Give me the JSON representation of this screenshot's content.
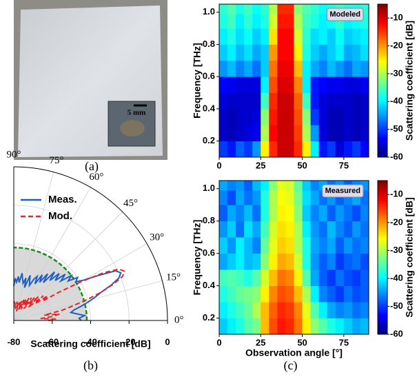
{
  "photo": {
    "scale_label": "5 mm",
    "caption": "(a)"
  },
  "chart_data": [
    {
      "type": "polar",
      "caption": "(b)",
      "xlabel": "Scattering coefficient [dB]",
      "rlim": [
        -80,
        0
      ],
      "rticks": [
        -80,
        -60,
        -40,
        -20,
        0
      ],
      "thetalim": [
        0,
        90
      ],
      "thetaticks": [
        {
          "value": 0,
          "label": "0°"
        },
        {
          "value": 15,
          "label": "15°"
        },
        {
          "value": 30,
          "label": "30°"
        },
        {
          "value": 45,
          "label": "45°"
        },
        {
          "value": 60,
          "label": "60°"
        },
        {
          "value": 75,
          "label": "75°"
        },
        {
          "value": 90,
          "label": "90°"
        }
      ],
      "grid": true,
      "legend": "upper left",
      "noise_floor": -42,
      "noise_color": "#1a8c1a",
      "x": [
        0,
        2,
        4,
        6,
        8,
        10,
        12,
        14,
        16,
        18,
        20,
        22,
        24,
        26,
        28,
        30,
        32,
        34,
        36,
        38,
        40,
        42,
        44,
        46,
        48,
        50,
        52,
        54,
        56,
        58,
        60,
        62,
        64,
        66,
        68,
        70,
        72,
        74,
        76,
        78,
        80,
        82,
        84,
        86,
        88,
        90
      ],
      "series": [
        {
          "name": "Meas.",
          "color": "#1f5fc4",
          "dash": false,
          "values": [
            -45,
            -46,
            -43,
            -47,
            -50,
            -48,
            -44,
            -40,
            -36,
            -32,
            -26,
            -21,
            -19,
            -21,
            -30,
            -38,
            -42,
            -40,
            -45,
            -42,
            -48,
            -44,
            -50,
            -46,
            -52,
            -47,
            -55,
            -50,
            -56,
            -52,
            -58,
            -54,
            -56,
            -60,
            -58,
            -55,
            -62,
            -57,
            -60,
            -58,
            -55,
            -60,
            -57,
            -60,
            -58,
            -62
          ]
        },
        {
          "name": "Mod.",
          "color": "#e8232a",
          "dash": true,
          "values": [
            -62,
            -58,
            -66,
            -60,
            -56,
            -64,
            -54,
            -48,
            -40,
            -32,
            -25,
            -19,
            -17,
            -19,
            -27,
            -40,
            -52,
            -62,
            -58,
            -66,
            -60,
            -70,
            -62,
            -68,
            -64,
            -72,
            -65,
            -70,
            -66,
            -73,
            -67,
            -72,
            -68,
            -74,
            -69,
            -72,
            -70,
            -75,
            -70,
            -73,
            -70,
            -74,
            -71,
            -73,
            -70,
            -72
          ]
        }
      ]
    },
    {
      "type": "heatmap",
      "annotation": "Modeled",
      "ylabel": "Frequency [THz]",
      "colorbar_label": "Scattering coefficient [dB]",
      "colormap": "jet",
      "xlim": [
        0,
        90
      ],
      "xticks": [
        0,
        25,
        50,
        75
      ],
      "ylim": [
        0.1,
        1.05
      ],
      "yticks": [
        0.2,
        0.4,
        0.6,
        0.8,
        {
          "value": 1,
          "label": "1.0"
        }
      ],
      "zlim": [
        -60,
        -5
      ],
      "zticks": [
        -60,
        -50,
        -40,
        -30,
        -20,
        -10
      ],
      "x": [
        2.5,
        7.5,
        12.5,
        17.5,
        22.5,
        27.5,
        32.5,
        37.5,
        42.5,
        47.5,
        52.5,
        57.5,
        62.5,
        67.5,
        72.5,
        77.5,
        82.5,
        87.5
      ],
      "y": [
        0.15,
        0.25,
        0.35,
        0.45,
        0.55,
        0.65,
        0.75,
        0.85,
        0.95,
        1.03
      ],
      "z": [
        [
          -50,
          -52,
          -48,
          -50,
          -45,
          -25,
          -14,
          -9,
          -9,
          -14,
          -25,
          -40,
          -52,
          -50,
          -55,
          -52,
          -50,
          -53
        ],
        [
          -56,
          -57,
          -56,
          -55,
          -54,
          -30,
          -12,
          -9,
          -9,
          -15,
          -30,
          -45,
          -55,
          -57,
          -57,
          -56,
          -57,
          -56
        ],
        [
          -56,
          -57,
          -56,
          -56,
          -55,
          -32,
          -13,
          -9,
          -9,
          -16,
          -32,
          -50,
          -55,
          -57,
          -57,
          -56,
          -57,
          -56
        ],
        [
          -55,
          -56,
          -56,
          -56,
          -56,
          -36,
          -14,
          -9,
          -9,
          -17,
          -36,
          -52,
          -55,
          -56,
          -56,
          -56,
          -57,
          -56
        ],
        [
          -53,
          -54,
          -55,
          -55,
          -55,
          -40,
          -16,
          -10,
          -10,
          -19,
          -40,
          -52,
          -53,
          -54,
          -54,
          -55,
          -55,
          -54
        ],
        [
          -45,
          -43,
          -46,
          -44,
          -47,
          -42,
          -18,
          -11,
          -11,
          -22,
          -40,
          -44,
          -46,
          -43,
          -45,
          -47,
          -44,
          -45
        ],
        [
          -42,
          -40,
          -43,
          -41,
          -44,
          -42,
          -20,
          -12,
          -12,
          -25,
          -38,
          -42,
          -44,
          -42,
          -40,
          -44,
          -43,
          -41
        ],
        [
          -40,
          -38,
          -41,
          -39,
          -42,
          -40,
          -24,
          -12,
          -12,
          -28,
          -37,
          -41,
          -40,
          -42,
          -39,
          -42,
          -41,
          -40
        ],
        [
          -38,
          -36,
          -40,
          -37,
          -40,
          -38,
          -28,
          -13,
          -13,
          -30,
          -36,
          -38,
          -40,
          -39,
          -37,
          -40,
          -39,
          -38
        ],
        [
          -37,
          -35,
          -38,
          -36,
          -39,
          -37,
          -30,
          -14,
          -14,
          -32,
          -35,
          -37,
          -39,
          -38,
          -36,
          -38,
          -38,
          -37
        ]
      ]
    },
    {
      "type": "heatmap",
      "annotation": "Measured",
      "ylabel": "Frequency [THz]",
      "xlabel": "Observation angle [°]",
      "colorbar_label": "Scattering coefficient [dB]",
      "colormap": "jet",
      "caption": "(c)",
      "xlim": [
        0,
        90
      ],
      "xticks": [
        0,
        25,
        50,
        75
      ],
      "ylim": [
        0.1,
        1.05
      ],
      "yticks": [
        0.2,
        0.4,
        0.6,
        0.8,
        {
          "value": 1,
          "label": "1.0"
        }
      ],
      "zlim": [
        -60,
        -5
      ],
      "zticks": [
        -60,
        -50,
        -40,
        -30,
        -20,
        -10
      ],
      "x": [
        2.5,
        7.5,
        12.5,
        17.5,
        22.5,
        27.5,
        32.5,
        37.5,
        42.5,
        47.5,
        52.5,
        57.5,
        62.5,
        67.5,
        72.5,
        77.5,
        82.5,
        87.5
      ],
      "y": [
        0.15,
        0.25,
        0.35,
        0.45,
        0.55,
        0.65,
        0.75,
        0.85,
        0.95,
        1.03
      ],
      "z": [
        [
          -42,
          -40,
          -38,
          -35,
          -33,
          -22,
          -16,
          -13,
          -14,
          -18,
          -25,
          -32,
          -35,
          -38,
          -40,
          -42,
          -44,
          -43
        ],
        [
          -40,
          -38,
          -36,
          -34,
          -30,
          -22,
          -17,
          -14,
          -15,
          -19,
          -27,
          -35,
          -40,
          -44,
          -46,
          -45,
          -47,
          -46
        ],
        [
          -38,
          -36,
          -34,
          -33,
          -32,
          -25,
          -19,
          -16,
          -17,
          -22,
          -30,
          -40,
          -46,
          -48,
          -50,
          -47,
          -49,
          -48
        ],
        [
          -36,
          -35,
          -36,
          -38,
          -35,
          -28,
          -22,
          -18,
          -19,
          -25,
          -35,
          -44,
          -48,
          -50,
          -47,
          -49,
          -50,
          -48
        ],
        [
          -44,
          -42,
          -40,
          -43,
          -42,
          -32,
          -25,
          -21,
          -22,
          -28,
          -38,
          -45,
          -48,
          -46,
          -50,
          -48,
          -47,
          -49
        ],
        [
          -42,
          -45,
          -40,
          -43,
          -46,
          -34,
          -27,
          -23,
          -24,
          -30,
          -38,
          -44,
          -46,
          -44,
          -48,
          -45,
          -47,
          -46
        ],
        [
          -45,
          -42,
          -47,
          -41,
          -44,
          -36,
          -28,
          -24,
          -25,
          -30,
          -40,
          -45,
          -47,
          -43,
          -46,
          -48,
          -45,
          -47
        ],
        [
          -48,
          -44,
          -46,
          -43,
          -47,
          -38,
          -30,
          -25,
          -26,
          -32,
          -42,
          -46,
          -44,
          -48,
          -45,
          -47,
          -49,
          -46
        ],
        [
          -46,
          -49,
          -44,
          -47,
          -45,
          -38,
          -30,
          -26,
          -27,
          -33,
          -41,
          -44,
          -47,
          -45,
          -48,
          -46,
          -44,
          -47
        ],
        [
          -44,
          -46,
          -45,
          -48,
          -43,
          -40,
          -32,
          -27,
          -28,
          -34,
          -42,
          -46,
          -44,
          -47,
          -45,
          -48,
          -46,
          -45
        ]
      ]
    }
  ]
}
